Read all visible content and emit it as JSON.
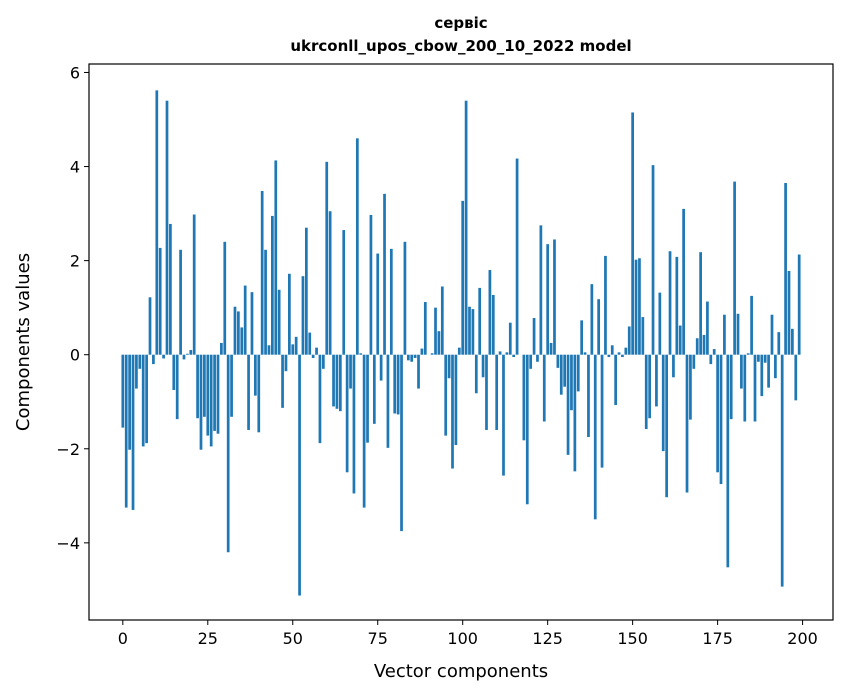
{
  "chart_data": {
    "type": "bar",
    "title": "сервіс",
    "subtitle": "ukrconll_upos_cbow_200_10_2022 model",
    "xlabel": "Vector components",
    "ylabel": "Components values",
    "xlim": [
      -9.95,
      208.95
    ],
    "ylim": [
      -5.64,
      6.18
    ],
    "xticks": [
      0,
      25,
      50,
      75,
      100,
      125,
      150,
      175,
      200
    ],
    "yticks": [
      -4,
      -2,
      0,
      2,
      4,
      6
    ],
    "xtick_labels": [
      "0",
      "25",
      "50",
      "75",
      "100",
      "125",
      "150",
      "175",
      "200"
    ],
    "ytick_labels": [
      "−4",
      "−2",
      "0",
      "2",
      "4",
      "6"
    ],
    "grid": false,
    "bar_color": "#1f77b4",
    "x": [
      0,
      1,
      2,
      3,
      4,
      5,
      6,
      7,
      8,
      9,
      10,
      11,
      12,
      13,
      14,
      15,
      16,
      17,
      18,
      19,
      20,
      21,
      22,
      23,
      24,
      25,
      26,
      27,
      28,
      29,
      30,
      31,
      32,
      33,
      34,
      35,
      36,
      37,
      38,
      39,
      40,
      41,
      42,
      43,
      44,
      45,
      46,
      47,
      48,
      49,
      50,
      51,
      52,
      53,
      54,
      55,
      56,
      57,
      58,
      59,
      60,
      61,
      62,
      63,
      64,
      65,
      66,
      67,
      68,
      69,
      70,
      71,
      72,
      73,
      74,
      75,
      76,
      77,
      78,
      79,
      80,
      81,
      82,
      83,
      84,
      85,
      86,
      87,
      88,
      89,
      90,
      91,
      92,
      93,
      94,
      95,
      96,
      97,
      98,
      99,
      100,
      101,
      102,
      103,
      104,
      105,
      106,
      107,
      108,
      109,
      110,
      111,
      112,
      113,
      114,
      115,
      116,
      117,
      118,
      119,
      120,
      121,
      122,
      123,
      124,
      125,
      126,
      127,
      128,
      129,
      130,
      131,
      132,
      133,
      134,
      135,
      136,
      137,
      138,
      139,
      140,
      141,
      142,
      143,
      144,
      145,
      146,
      147,
      148,
      149,
      150,
      151,
      152,
      153,
      154,
      155,
      156,
      157,
      158,
      159,
      160,
      161,
      162,
      163,
      164,
      165,
      166,
      167,
      168,
      169,
      170,
      171,
      172,
      173,
      174,
      175,
      176,
      177,
      178,
      179,
      180,
      181,
      182,
      183,
      184,
      185,
      186,
      187,
      188,
      189,
      190,
      191,
      192,
      193,
      194,
      195,
      196,
      197,
      198,
      199
    ],
    "values": [
      -1.55,
      -3.25,
      -2.02,
      -3.3,
      -0.72,
      -0.3,
      -1.95,
      -1.88,
      1.22,
      -0.2,
      5.62,
      2.27,
      -0.08,
      5.4,
      2.78,
      -0.75,
      -1.37,
      2.23,
      -0.1,
      0.02,
      0.1,
      2.98,
      -1.35,
      -2.02,
      -1.32,
      -1.72,
      -1.95,
      -1.62,
      -1.68,
      0.25,
      2.4,
      -4.2,
      -1.32,
      1.02,
      0.92,
      0.58,
      1.47,
      -1.6,
      1.33,
      -0.87,
      -1.65,
      3.48,
      2.23,
      0.2,
      2.95,
      4.13,
      1.38,
      -1.13,
      -0.35,
      1.72,
      0.22,
      0.38,
      -5.12,
      1.67,
      2.7,
      0.47,
      -0.07,
      0.15,
      -1.88,
      -0.3,
      4.1,
      3.05,
      -1.1,
      -1.15,
      -1.2,
      2.65,
      -2.5,
      -0.72,
      -2.95,
      4.6,
      0.03,
      -3.25,
      -1.87,
      2.97,
      -1.47,
      2.15,
      -0.55,
      3.42,
      -1.98,
      2.25,
      -1.25,
      -1.27,
      -3.75,
      2.4,
      -0.12,
      -0.15,
      -0.07,
      -0.72,
      0.13,
      1.12,
      0.0,
      0.03,
      1.0,
      0.5,
      1.45,
      -1.72,
      -0.5,
      -2.42,
      -1.92,
      0.15,
      3.27,
      5.4,
      1.02,
      0.97,
      -0.82,
      1.42,
      -0.48,
      -1.6,
      1.8,
      1.27,
      -1.6,
      0.07,
      -2.57,
      0.05,
      0.68,
      -0.05,
      4.17,
      0.0,
      -1.82,
      -3.18,
      -0.3,
      0.78,
      -0.15,
      2.75,
      -1.42,
      2.35,
      0.25,
      2.45,
      -0.28,
      -0.85,
      -0.68,
      -2.13,
      -1.18,
      -2.48,
      -0.78,
      0.73,
      0.05,
      -1.75,
      1.5,
      -3.5,
      1.18,
      -2.4,
      2.1,
      -0.05,
      0.2,
      -1.07,
      0.05,
      -0.05,
      0.15,
      0.6,
      5.15,
      2.02,
      2.05,
      0.8,
      -1.58,
      -1.35,
      4.03,
      -1.1,
      1.32,
      -2.05,
      -3.03,
      2.2,
      -0.48,
      2.08,
      0.62,
      3.1,
      -2.93,
      -1.38,
      -0.3,
      0.35,
      2.18,
      0.42,
      1.13,
      -0.2,
      0.12,
      -2.5,
      -2.75,
      0.85,
      -4.52,
      -1.37,
      3.68,
      0.87,
      -0.72,
      -1.42,
      0.03,
      1.25,
      -1.42,
      -0.15,
      -0.88,
      -0.17,
      -0.7,
      0.85,
      -0.5,
      0.48,
      -4.93,
      3.65,
      1.78,
      0.55,
      -0.97,
      2.13
    ]
  }
}
